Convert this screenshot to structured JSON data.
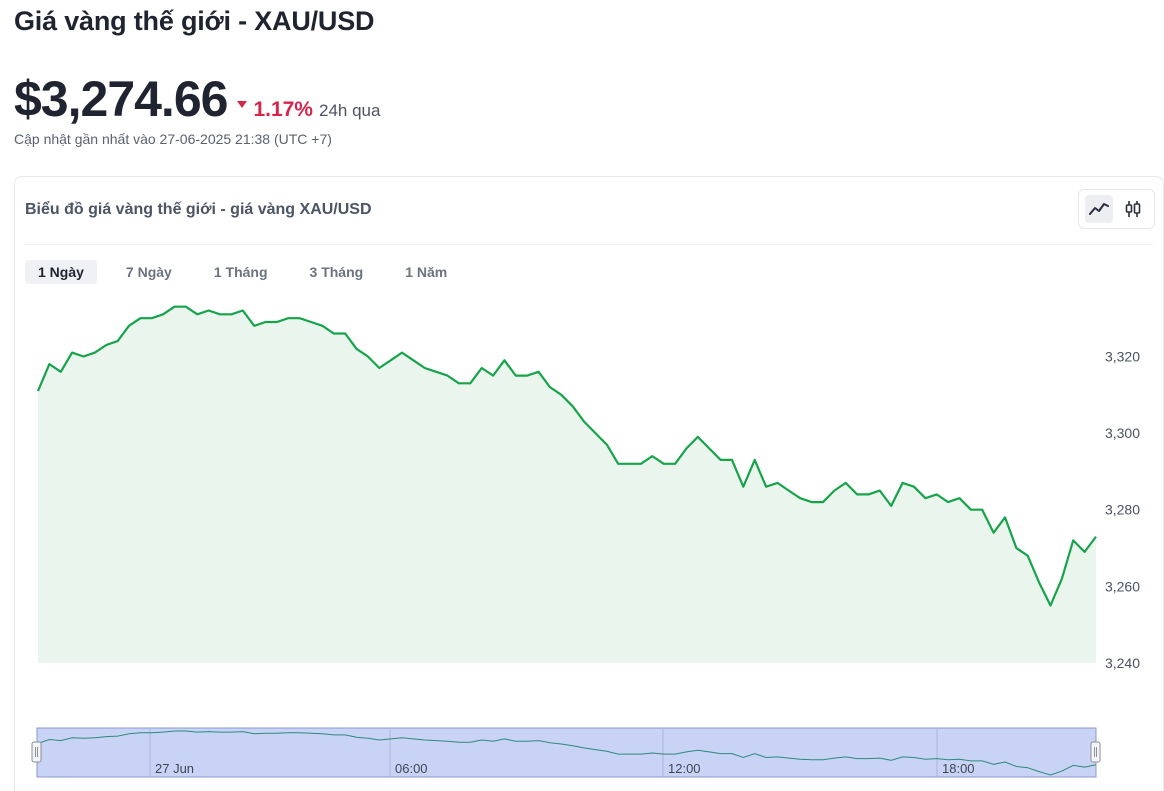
{
  "header": {
    "title": "Giá vàng thế giới - XAU/USD",
    "price": "$3,274.66",
    "change_pct": "1.17%",
    "change_period": "24h qua",
    "change_direction": "down",
    "updated": "Cập nhật gần nhất vào 27-06-2025 21:38 (UTC +7)"
  },
  "card": {
    "title": "Biểu đồ giá vàng thế giới - giá vàng XAU/USD",
    "tabs": [
      "1 Ngày",
      "7 Ngày",
      "1 Tháng",
      "3 Tháng",
      "1 Năm"
    ],
    "active_tab": "1 Ngày",
    "chart_modes": [
      {
        "icon": "line-chart-icon",
        "active": true
      },
      {
        "icon": "candlestick-icon",
        "active": false
      }
    ]
  },
  "colors": {
    "line": "#16a34a",
    "area": "#eaf5ee",
    "down": "#d6244a",
    "navigator_fill": "#c9d3f5",
    "navigator_border": "#8c9ad0"
  },
  "chart_data": {
    "type": "area",
    "y_axis_side": "right",
    "ylim": [
      3240,
      3335
    ],
    "y_ticks": [
      3240,
      3260,
      3280,
      3300,
      3320
    ],
    "y_tick_labels": [
      "3,240",
      "3,260",
      "3,280",
      "3,300",
      "3,320"
    ],
    "navigator_labels": [
      "27 Jun",
      "06:00",
      "12:00",
      "18:00"
    ],
    "series": [
      {
        "values": [
          3311,
          3318,
          3316,
          3321,
          3320,
          3321,
          3323,
          3324,
          3328,
          3330,
          3330,
          3331,
          3333,
          3333,
          3331,
          3332,
          3331,
          3331,
          3332,
          3328,
          3329,
          3329,
          3330,
          3330,
          3329,
          3328,
          3326,
          3326,
          3322,
          3320,
          3317,
          3319,
          3321,
          3319,
          3317,
          3316,
          3315,
          3313,
          3313,
          3317,
          3315,
          3319,
          3315,
          3315,
          3316,
          3312,
          3310,
          3307,
          3303,
          3300,
          3297,
          3292,
          3292,
          3292,
          3294,
          3292,
          3292,
          3296,
          3299,
          3296,
          3293,
          3293,
          3286,
          3293,
          3286,
          3287,
          3285,
          3283,
          3282,
          3282,
          3285,
          3287,
          3284,
          3284,
          3285,
          3281,
          3287,
          3286,
          3283,
          3284,
          3282,
          3283,
          3280,
          3280,
          3274,
          3278,
          3270,
          3268,
          3261,
          3255,
          3262,
          3272,
          3269,
          3273
        ]
      }
    ]
  }
}
